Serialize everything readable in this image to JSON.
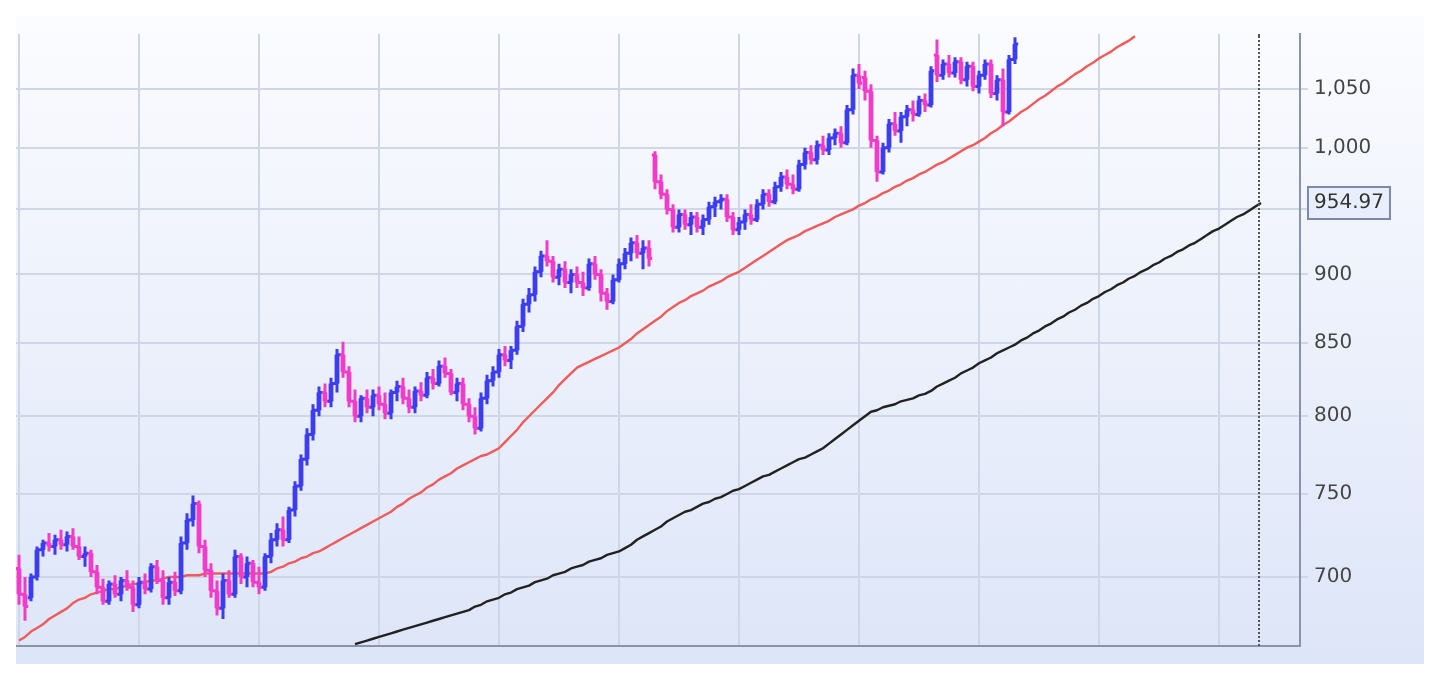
{
  "chart_data": {
    "type": "candlestick",
    "log": true,
    "grid": true,
    "tick_labels": "y",
    "categories": [
      null,
      null,
      null,
      null,
      null,
      null,
      null,
      null,
      null,
      null,
      null,
      null,
      null,
      null,
      null,
      null,
      null,
      null,
      null,
      null,
      null,
      null,
      null,
      null,
      null,
      null,
      null,
      null,
      null,
      null,
      null,
      null,
      null,
      null,
      null,
      null,
      null,
      null,
      null,
      null,
      null,
      null,
      null,
      null,
      null,
      null,
      null,
      null,
      null,
      null,
      null,
      null,
      null,
      null,
      null,
      null,
      null,
      null,
      null,
      null,
      null,
      null,
      null,
      null,
      null,
      null,
      null,
      null,
      null,
      null,
      null,
      null,
      null,
      null,
      null,
      null,
      null,
      null,
      null,
      null,
      null,
      null,
      null,
      null,
      null,
      null,
      null,
      null,
      null,
      null,
      null,
      null,
      null,
      null,
      null,
      null,
      null,
      null,
      null,
      null,
      null,
      null,
      null,
      null,
      null,
      null,
      null,
      null,
      null,
      null,
      null,
      null,
      null,
      null,
      null,
      null,
      null,
      null,
      null,
      null,
      null,
      null,
      null,
      null,
      null,
      null,
      null,
      null,
      null,
      null,
      null,
      null,
      null,
      null,
      null,
      null,
      null,
      null,
      null,
      null,
      null,
      null,
      null,
      null,
      null,
      null,
      null,
      null,
      null,
      null,
      null,
      null,
      null,
      null,
      null,
      null,
      null,
      null,
      null,
      null,
      null,
      null,
      null,
      null,
      null,
      null,
      null,
      null,
      null,
      null,
      null,
      null,
      null,
      null,
      null,
      null,
      null,
      null,
      null,
      null,
      null,
      null,
      null,
      null,
      null,
      null,
      null,
      null,
      null,
      null,
      null,
      null,
      null,
      null,
      null,
      null,
      null,
      null,
      null,
      null,
      null,
      null,
      null,
      null,
      null,
      null,
      null,
      null,
      null,
      null,
      null,
      null,
      null,
      null
    ],
    "ohlc": [
      [
        705,
        713,
        684,
        690
      ],
      [
        690,
        700,
        675,
        683
      ],
      [
        688,
        702,
        686,
        700
      ],
      [
        700,
        718,
        698,
        716
      ],
      [
        716,
        722,
        712,
        720
      ],
      [
        720,
        726,
        715,
        718
      ],
      [
        718,
        725,
        713,
        722
      ],
      [
        722,
        728,
        716,
        719
      ],
      [
        719,
        727,
        715,
        724
      ],
      [
        724,
        729,
        716,
        718
      ],
      [
        718,
        724,
        710,
        712
      ],
      [
        712,
        718,
        706,
        714
      ],
      [
        714,
        716,
        700,
        703
      ],
      [
        703,
        707,
        690,
        694
      ],
      [
        694,
        699,
        684,
        686
      ],
      [
        686,
        698,
        684,
        696
      ],
      [
        696,
        701,
        688,
        690
      ],
      [
        690,
        700,
        686,
        698
      ],
      [
        698,
        704,
        692,
        694
      ],
      [
        694,
        698,
        680,
        684
      ],
      [
        684,
        700,
        682,
        697
      ],
      [
        697,
        702,
        690,
        693
      ],
      [
        693,
        708,
        691,
        706
      ],
      [
        706,
        710,
        696,
        698
      ],
      [
        698,
        704,
        684,
        688
      ],
      [
        688,
        700,
        684,
        697
      ],
      [
        697,
        703,
        689,
        692
      ],
      [
        692,
        724,
        690,
        720
      ],
      [
        720,
        738,
        716,
        734
      ],
      [
        734,
        749,
        730,
        744
      ],
      [
        744,
        746,
        714,
        718
      ],
      [
        718,
        722,
        700,
        704
      ],
      [
        704,
        708,
        688,
        692
      ],
      [
        692,
        698,
        678,
        682
      ],
      [
        682,
        702,
        676,
        698
      ],
      [
        698,
        704,
        688,
        690
      ],
      [
        690,
        716,
        688,
        712
      ],
      [
        712,
        714,
        696,
        700
      ],
      [
        700,
        712,
        694,
        708
      ],
      [
        708,
        710,
        694,
        697
      ],
      [
        697,
        706,
        690,
        694
      ],
      [
        694,
        714,
        692,
        712
      ],
      [
        712,
        726,
        708,
        722
      ],
      [
        722,
        732,
        718,
        728
      ],
      [
        728,
        736,
        718,
        722
      ],
      [
        722,
        742,
        720,
        740
      ],
      [
        740,
        758,
        736,
        755
      ],
      [
        755,
        775,
        752,
        772
      ],
      [
        772,
        792,
        768,
        788
      ],
      [
        788,
        808,
        784,
        804
      ],
      [
        804,
        820,
        800,
        816
      ],
      [
        816,
        822,
        806,
        810
      ],
      [
        810,
        826,
        806,
        822
      ],
      [
        822,
        846,
        816,
        842
      ],
      [
        842,
        851,
        826,
        830
      ],
      [
        830,
        834,
        806,
        810
      ],
      [
        810,
        818,
        796,
        800
      ],
      [
        800,
        814,
        796,
        812
      ],
      [
        812,
        818,
        802,
        806
      ],
      [
        806,
        818,
        800,
        814
      ],
      [
        814,
        820,
        804,
        808
      ],
      [
        808,
        816,
        798,
        802
      ],
      [
        802,
        818,
        798,
        816
      ],
      [
        816,
        824,
        810,
        820
      ],
      [
        820,
        826,
        808,
        812
      ],
      [
        812,
        818,
        802,
        806
      ],
      [
        806,
        820,
        802,
        817
      ],
      [
        817,
        823,
        810,
        814
      ],
      [
        814,
        830,
        812,
        826
      ],
      [
        826,
        832,
        818,
        822
      ],
      [
        822,
        838,
        820,
        834
      ],
      [
        834,
        840,
        826,
        829
      ],
      [
        829,
        832,
        814,
        816
      ],
      [
        816,
        826,
        810,
        822
      ],
      [
        822,
        826,
        804,
        808
      ],
      [
        808,
        812,
        796,
        800
      ],
      [
        800,
        806,
        788,
        792
      ],
      [
        792,
        816,
        790,
        812
      ],
      [
        812,
        828,
        808,
        824
      ],
      [
        824,
        834,
        820,
        830
      ],
      [
        830,
        846,
        826,
        842
      ],
      [
        842,
        848,
        834,
        838
      ],
      [
        838,
        848,
        832,
        845
      ],
      [
        845,
        866,
        842,
        862
      ],
      [
        862,
        882,
        858,
        878
      ],
      [
        878,
        890,
        872,
        885
      ],
      [
        885,
        906,
        880,
        902
      ],
      [
        902,
        918,
        898,
        914
      ],
      [
        914,
        926,
        906,
        910
      ],
      [
        910,
        914,
        894,
        898
      ],
      [
        898,
        908,
        892,
        904
      ],
      [
        904,
        910,
        890,
        894
      ],
      [
        894,
        904,
        886,
        900
      ],
      [
        900,
        906,
        890,
        894
      ],
      [
        894,
        902,
        884,
        890
      ],
      [
        890,
        912,
        888,
        908
      ],
      [
        908,
        914,
        896,
        900
      ],
      [
        900,
        904,
        880,
        886
      ],
      [
        886,
        890,
        874,
        880
      ],
      [
        880,
        900,
        878,
        896
      ],
      [
        896,
        912,
        894,
        908
      ],
      [
        908,
        920,
        904,
        916
      ],
      [
        916,
        928,
        910,
        924
      ],
      [
        924,
        930,
        912,
        916
      ],
      [
        916,
        926,
        904,
        920
      ],
      [
        920,
        926,
        906,
        912
      ],
      [
        994,
        997,
        966,
        972
      ],
      [
        972,
        978,
        958,
        962
      ],
      [
        962,
        966,
        946,
        950
      ],
      [
        950,
        954,
        932,
        936
      ],
      [
        936,
        950,
        932,
        946
      ],
      [
        946,
        950,
        934,
        938
      ],
      [
        938,
        948,
        930,
        944
      ],
      [
        944,
        948,
        932,
        936
      ],
      [
        936,
        946,
        930,
        942
      ],
      [
        942,
        956,
        938,
        952
      ],
      [
        952,
        960,
        944,
        956
      ],
      [
        956,
        962,
        950,
        958
      ],
      [
        958,
        962,
        940,
        944
      ],
      [
        944,
        948,
        930,
        934
      ],
      [
        934,
        944,
        930,
        940
      ],
      [
        940,
        950,
        934,
        946
      ],
      [
        946,
        954,
        938,
        942
      ],
      [
        942,
        958,
        940,
        954
      ],
      [
        954,
        966,
        950,
        962
      ],
      [
        962,
        966,
        952,
        956
      ],
      [
        956,
        972,
        954,
        968
      ],
      [
        968,
        980,
        964,
        976
      ],
      [
        976,
        982,
        966,
        970
      ],
      [
        970,
        978,
        962,
        966
      ],
      [
        966,
        990,
        964,
        986
      ],
      [
        986,
        1000,
        982,
        996
      ],
      [
        996,
        1002,
        986,
        990
      ],
      [
        990,
        1006,
        986,
        1002
      ],
      [
        1002,
        1010,
        994,
        998
      ],
      [
        998,
        1012,
        994,
        1008
      ],
      [
        1008,
        1016,
        1002,
        1012
      ],
      [
        1012,
        1018,
        1000,
        1004
      ],
      [
        1004,
        1036,
        1002,
        1032
      ],
      [
        1032,
        1068,
        1028,
        1062
      ],
      [
        1062,
        1072,
        1050,
        1055
      ],
      [
        1060,
        1066,
        1040,
        1048
      ],
      [
        1048,
        1054,
        1000,
        1006
      ],
      [
        1006,
        1010,
        972,
        980
      ],
      [
        980,
        1004,
        978,
        1000
      ],
      [
        1000,
        1024,
        996,
        1020
      ],
      [
        1020,
        1030,
        1010,
        1014
      ],
      [
        1014,
        1030,
        1004,
        1026
      ],
      [
        1026,
        1036,
        1018,
        1032
      ],
      [
        1032,
        1040,
        1022,
        1028
      ],
      [
        1028,
        1044,
        1026,
        1040
      ],
      [
        1040,
        1046,
        1030,
        1036
      ],
      [
        1036,
        1070,
        1034,
        1066
      ],
      [
        1080,
        1094,
        1056,
        1062
      ],
      [
        1062,
        1076,
        1058,
        1072
      ],
      [
        1072,
        1080,
        1060,
        1064
      ],
      [
        1064,
        1078,
        1060,
        1074
      ],
      [
        1074,
        1078,
        1054,
        1058
      ],
      [
        1058,
        1074,
        1052,
        1070
      ],
      [
        1070,
        1074,
        1048,
        1052
      ],
      [
        1052,
        1066,
        1046,
        1062
      ],
      [
        1062,
        1076,
        1058,
        1072
      ],
      [
        1072,
        1076,
        1042,
        1046
      ],
      [
        1046,
        1062,
        1040,
        1058
      ],
      [
        1058,
        1068,
        1018,
        1030
      ],
      [
        1030,
        1080,
        1028,
        1076
      ],
      [
        1076,
        1096,
        1072,
        1090
      ],
      null,
      null,
      null,
      null,
      null,
      null,
      null,
      null,
      null,
      null,
      null,
      null,
      null,
      null,
      null,
      null,
      null,
      null,
      null,
      null,
      null,
      null,
      null,
      null,
      null,
      null,
      null,
      null,
      null,
      null,
      null,
      null,
      null,
      null,
      null,
      null,
      null,
      null,
      null,
      null,
      null,
      null,
      null,
      null,
      null,
      null,
      null
    ],
    "colors": [
      "#f03cc8",
      "#f03cc8",
      "#3c3cf0",
      "#3c3cf0",
      "#3c3cf0",
      "#f03cc8",
      "#3c3cf0",
      "#f03cc8",
      "#3c3cf0",
      "#f03cc8",
      "#f03cc8",
      "#3c3cf0",
      "#f03cc8",
      "#f03cc8",
      "#f03cc8",
      "#3c3cf0",
      "#f03cc8",
      "#3c3cf0",
      "#f03cc8",
      "#f03cc8",
      "#3c3cf0",
      "#f03cc8",
      "#3c3cf0",
      "#f03cc8",
      "#f03cc8",
      "#3c3cf0",
      "#f03cc8",
      "#3c3cf0",
      "#3c3cf0",
      "#3c3cf0",
      "#f03cc8",
      "#f03cc8",
      "#f03cc8",
      "#f03cc8",
      "#3c3cf0",
      "#f03cc8",
      "#3c3cf0",
      "#f03cc8",
      "#3c3cf0",
      "#f03cc8",
      "#f03cc8",
      "#3c3cf0",
      "#3c3cf0",
      "#3c3cf0",
      "#f03cc8",
      "#3c3cf0",
      "#3c3cf0",
      "#3c3cf0",
      "#3c3cf0",
      "#3c3cf0",
      "#3c3cf0",
      "#f03cc8",
      "#3c3cf0",
      "#3c3cf0",
      "#f03cc8",
      "#f03cc8",
      "#f03cc8",
      "#3c3cf0",
      "#f03cc8",
      "#3c3cf0",
      "#f03cc8",
      "#f03cc8",
      "#3c3cf0",
      "#3c3cf0",
      "#f03cc8",
      "#f03cc8",
      "#3c3cf0",
      "#f03cc8",
      "#3c3cf0",
      "#f03cc8",
      "#3c3cf0",
      "#f03cc8",
      "#f03cc8",
      "#3c3cf0",
      "#f03cc8",
      "#f03cc8",
      "#f03cc8",
      "#3c3cf0",
      "#3c3cf0",
      "#3c3cf0",
      "#3c3cf0",
      "#f03cc8",
      "#3c3cf0",
      "#3c3cf0",
      "#3c3cf0",
      "#3c3cf0",
      "#3c3cf0",
      "#3c3cf0",
      "#f03cc8",
      "#f03cc8",
      "#3c3cf0",
      "#f03cc8",
      "#3c3cf0",
      "#f03cc8",
      "#f03cc8",
      "#3c3cf0",
      "#f03cc8",
      "#f03cc8",
      "#f03cc8",
      "#3c3cf0",
      "#3c3cf0",
      "#3c3cf0",
      "#3c3cf0",
      "#f03cc8",
      "#3c3cf0",
      "#f03cc8",
      "#f03cc8",
      "#f03cc8",
      "#f03cc8",
      "#f03cc8",
      "#3c3cf0",
      "#f03cc8",
      "#3c3cf0",
      "#f03cc8",
      "#3c3cf0",
      "#3c3cf0",
      "#3c3cf0",
      "#3c3cf0",
      "#f03cc8",
      "#f03cc8",
      "#3c3cf0",
      "#3c3cf0",
      "#f03cc8",
      "#3c3cf0",
      "#3c3cf0",
      "#f03cc8",
      "#3c3cf0",
      "#3c3cf0",
      "#f03cc8",
      "#f03cc8",
      "#3c3cf0",
      "#3c3cf0",
      "#f03cc8",
      "#3c3cf0",
      "#f03cc8",
      "#3c3cf0",
      "#3c3cf0",
      "#f03cc8",
      "#3c3cf0",
      "#3c3cf0",
      "#f03cc8",
      "#f03cc8",
      "#f03cc8",
      "#f03cc8",
      "#3c3cf0",
      "#3c3cf0",
      "#f03cc8",
      "#3c3cf0",
      "#3c3cf0",
      "#f03cc8",
      "#3c3cf0",
      "#f03cc8",
      "#3c3cf0",
      "#f03cc8",
      "#3c3cf0",
      "#f03cc8",
      "#3c3cf0",
      "#f03cc8",
      "#3c3cf0",
      "#f03cc8",
      "#3c3cf0",
      "#3c3cf0",
      "#f03cc8",
      "#3c3cf0",
      "#f03cc8",
      "#3c3cf0",
      "#3c3cf0",
      null,
      null,
      null,
      null,
      null,
      null,
      null,
      null,
      null,
      null,
      null,
      null,
      null,
      null,
      null,
      null,
      null,
      null,
      null,
      null,
      null,
      null,
      null,
      null,
      null,
      null,
      null,
      null,
      null,
      null,
      null,
      null,
      null,
      null,
      null,
      null,
      null,
      null,
      null,
      null,
      null,
      null,
      null,
      null,
      null,
      null,
      null
    ],
    "series": [
      {
        "type": "line",
        "color": "#f05a5a",
        "values": [
          664,
          666,
          669,
          671,
          673,
          676,
          678,
          680,
          682,
          685,
          687,
          688,
          690,
          691,
          692,
          693,
          693,
          694,
          695,
          696,
          696,
          697,
          698,
          698,
          699,
          700,
          700,
          700,
          701,
          701,
          701,
          702,
          702,
          702,
          702,
          702,
          702,
          702,
          702,
          702,
          702,
          702,
          703,
          705,
          706,
          708,
          709,
          711,
          712,
          714,
          715,
          717,
          719,
          721,
          723,
          725,
          727,
          729,
          731,
          733,
          735,
          737,
          739,
          742,
          744,
          747,
          749,
          751,
          754,
          756,
          759,
          761,
          763,
          766,
          768,
          770,
          772,
          774,
          775,
          777,
          779,
          783,
          787,
          791,
          796,
          800,
          804,
          808,
          812,
          816,
          821,
          825,
          829,
          833,
          835,
          837,
          839,
          841,
          843,
          845,
          847,
          850,
          853,
          857,
          860,
          863,
          866,
          869,
          873,
          876,
          879,
          881,
          884,
          886,
          888,
          891,
          893,
          895,
          898,
          900,
          902,
          905,
          908,
          911,
          914,
          917,
          920,
          923,
          926,
          928,
          930,
          933,
          935,
          937,
          939,
          941,
          944,
          946,
          948,
          950,
          953,
          955,
          958,
          960,
          963,
          965,
          968,
          970,
          973,
          975,
          978,
          980,
          983,
          986,
          988,
          991,
          994,
          997,
          1000,
          1002,
          1005,
          1008,
          1012,
          1015,
          1019,
          1022,
          1026,
          1030,
          1033,
          1037,
          1041,
          1044,
          1048,
          1052,
          1055,
          1059,
          1063,
          1066,
          1070,
          1073,
          1077,
          1080,
          1083,
          1087,
          1090,
          1093,
          1097,
          null,
          null,
          null,
          null,
          null,
          null,
          null,
          null,
          null,
          null,
          null,
          null,
          null,
          null,
          null,
          null,
          null,
          null,
          null,
          null,
          null,
          null,
          null,
          null,
          null,
          null,
          null
        ]
      },
      {
        "type": "line",
        "color": "#222222",
        "values": [
          null,
          null,
          null,
          null,
          null,
          null,
          null,
          null,
          null,
          null,
          null,
          null,
          null,
          null,
          null,
          null,
          null,
          null,
          null,
          null,
          null,
          null,
          null,
          null,
          null,
          null,
          null,
          null,
          null,
          null,
          null,
          null,
          null,
          null,
          null,
          null,
          null,
          null,
          null,
          null,
          null,
          null,
          null,
          null,
          null,
          null,
          null,
          null,
          null,
          null,
          null,
          null,
          null,
          null,
          null,
          null,
          662,
          663,
          664,
          665,
          666,
          667,
          668,
          669,
          670,
          671,
          672,
          673,
          674,
          675,
          676,
          677,
          678,
          679,
          680,
          681,
          683,
          684,
          686,
          687,
          688,
          690,
          691,
          693,
          694,
          695,
          697,
          698,
          699,
          701,
          702,
          703,
          705,
          706,
          707,
          709,
          710,
          711,
          713,
          714,
          715,
          717,
          719,
          722,
          724,
          726,
          728,
          730,
          733,
          735,
          737,
          739,
          740,
          742,
          744,
          745,
          747,
          748,
          750,
          752,
          753,
          755,
          757,
          759,
          761,
          762,
          764,
          766,
          768,
          770,
          772,
          773,
          775,
          777,
          779,
          782,
          785,
          788,
          791,
          794,
          797,
          800,
          803,
          804,
          806,
          807,
          808,
          810,
          811,
          812,
          814,
          815,
          817,
          820,
          822,
          824,
          826,
          829,
          831,
          833,
          836,
          838,
          840,
          843,
          845,
          847,
          849,
          852,
          854,
          857,
          859,
          862,
          864,
          867,
          869,
          872,
          874,
          877,
          879,
          882,
          884,
          887,
          889,
          892,
          894,
          897,
          899,
          902,
          904,
          907,
          909,
          912,
          914,
          917,
          919,
          922,
          924,
          927,
          930,
          933,
          935,
          938,
          941,
          944,
          946,
          949,
          952,
          954.97,
          null,
          null,
          null,
          null,
          null,
          null
        ]
      }
    ],
    "ylim": [
      661,
      1099
    ],
    "yticks": [
      700,
      750,
      800,
      850,
      900,
      {
        "value": 950,
        "label": null
      },
      {
        "value": 1000,
        "label": "1,000"
      },
      {
        "value": 1050,
        "label": "1,050"
      }
    ],
    "annotations": [
      "954.97"
    ]
  }
}
